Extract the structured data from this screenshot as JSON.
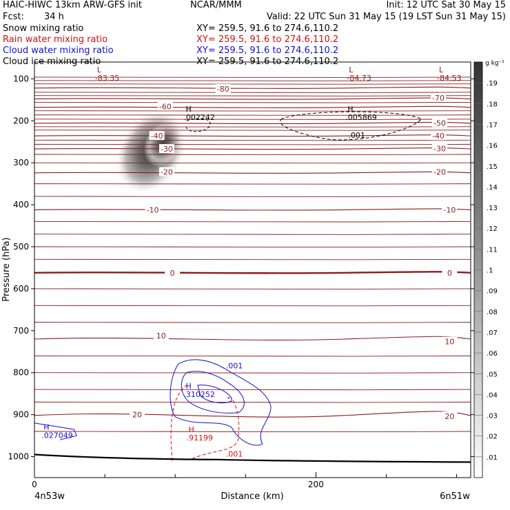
{
  "header": {
    "model": "HAIC-HIWC 13km ARW-GFS init",
    "org": "NCAR/MMM",
    "init": "Init: 12 UTC Sat 30 May 15",
    "fcst_label": "Fcst:",
    "fcst_value": "34 h",
    "valid": "Valid: 22 UTC Sun 31 May 15 (19 LST Sun 31 May 15)",
    "fields": [
      {
        "name": "Snow mixing ratio",
        "xy": "XY= 259.5, 91.6 to 274.6,110.2",
        "color": "#000000"
      },
      {
        "name": "Rain water mixing ratio",
        "xy": "XY= 259.5, 91.6 to 274.6,110.2",
        "color": "#d01010"
      },
      {
        "name": "Cloud water mixing ratio",
        "xy": "XY= 259.5, 91.6 to 274.6,110.2",
        "color": "#1010d0"
      },
      {
        "name": "Cloud ice mixing ratio",
        "xy": "XY= 259.5, 91.6 to 274.6,110.2",
        "color": "#000000"
      }
    ]
  },
  "chart_data": {
    "type": "contour-cross-section",
    "xlabel": "Distance (km)",
    "ylabel": "Pressure (hPa)",
    "xlim": [
      0,
      310
    ],
    "ylim": [
      1050,
      60
    ],
    "x_ticks": [
      0,
      200
    ],
    "x_minor_ticks": [
      50,
      100,
      150,
      250,
      300
    ],
    "y_ticks": [
      100,
      200,
      300,
      400,
      500,
      600,
      700,
      800,
      900,
      1000
    ],
    "endpoints": {
      "left": "4n53w",
      "right": "6n51w"
    },
    "temperature_contours": [
      {
        "level": -80,
        "p": 122
      },
      {
        "level": -70,
        "p": 148
      },
      {
        "level": -60,
        "p": 168
      },
      {
        "level": -50,
        "p": 206
      },
      {
        "level": -40,
        "p": 236
      },
      {
        "level": -30,
        "p": 267
      },
      {
        "level": -20,
        "p": 324
      },
      {
        "level": -10,
        "p": 412
      },
      {
        "level": 0,
        "p": 562
      },
      {
        "level": 10,
        "p": 720
      },
      {
        "level": 20,
        "p": 902
      }
    ],
    "temperature_labels": [
      {
        "text": "-80",
        "x": 134,
        "p": 124
      },
      {
        "text": "-70",
        "x": 287,
        "p": 145
      },
      {
        "text": "-60",
        "x": 93,
        "p": 166
      },
      {
        "text": "-50",
        "x": 288,
        "p": 205
      },
      {
        "text": "-40",
        "x": 87,
        "p": 236
      },
      {
        "text": "-40",
        "x": 287,
        "p": 236
      },
      {
        "text": "-30",
        "x": 94,
        "p": 267
      },
      {
        "text": "-30",
        "x": 288,
        "p": 266
      },
      {
        "text": "-20",
        "x": 94,
        "p": 322
      },
      {
        "text": "-20",
        "x": 288,
        "p": 322
      },
      {
        "text": "-10",
        "x": 84,
        "p": 412
      },
      {
        "text": "-10",
        "x": 295,
        "p": 412
      },
      {
        "text": "0",
        "x": 98,
        "p": 562
      },
      {
        "text": "0",
        "x": 295,
        "p": 562
      },
      {
        "text": "10",
        "x": 90,
        "p": 712
      },
      {
        "text": "10",
        "x": 295,
        "p": 726
      },
      {
        "text": "20",
        "x": 73,
        "p": 900
      },
      {
        "text": "20",
        "x": 295,
        "p": 904
      }
    ],
    "extrema": [
      {
        "kind": "L",
        "value": "-83.35",
        "x": 43,
        "p": 85,
        "color": "#8b1a1a"
      },
      {
        "kind": "L",
        "value": "-84.73",
        "x": 222,
        "p": 85,
        "color": "#8b1a1a"
      },
      {
        "kind": "L",
        "value": "-84.53",
        "x": 286,
        "p": 85,
        "color": "#8b1a1a"
      },
      {
        "kind": "H",
        "value": ".002242",
        "x": 106,
        "p": 178,
        "color": "#000000"
      },
      {
        "kind": "H",
        "value": ".005869",
        "x": 221,
        "p": 178,
        "color": "#000000"
      },
      {
        "kind": "H",
        "value": ".310252",
        "x": 106,
        "p": 838,
        "color": "#1010d0"
      },
      {
        "kind": "H",
        "value": ".91199",
        "x": 108,
        "p": 942,
        "color": "#d01010"
      },
      {
        "kind": "H",
        "value": ".027049",
        "x": 5,
        "p": 936,
        "color": "#1010d0"
      }
    ],
    "contour_labels": [
      {
        "text": ".001",
        "x": 223,
        "p": 241,
        "color": "#000000"
      },
      {
        "text": ".001",
        "x": 136,
        "p": 790,
        "color": "#1010d0"
      },
      {
        "text": ".001",
        "x": 136,
        "p": 1000,
        "color": "#d01010"
      }
    ],
    "snow_max": {
      "x": 89,
      "p": 270,
      "value": 0.19
    },
    "colorbar": {
      "unit": "g kg⁻¹",
      "ticks": [
        ".01",
        ".02",
        ".03",
        ".04",
        ".05",
        ".06",
        ".07",
        ".08",
        ".09",
        ".1",
        ".11",
        ".12",
        ".13",
        ".14",
        ".15",
        ".16",
        ".17",
        ".18",
        ".19"
      ]
    },
    "colors": {
      "temperature": "#8b1a1a",
      "cloud_water": "#1010d0",
      "rain": "#d01010",
      "ground": "#000000"
    }
  }
}
